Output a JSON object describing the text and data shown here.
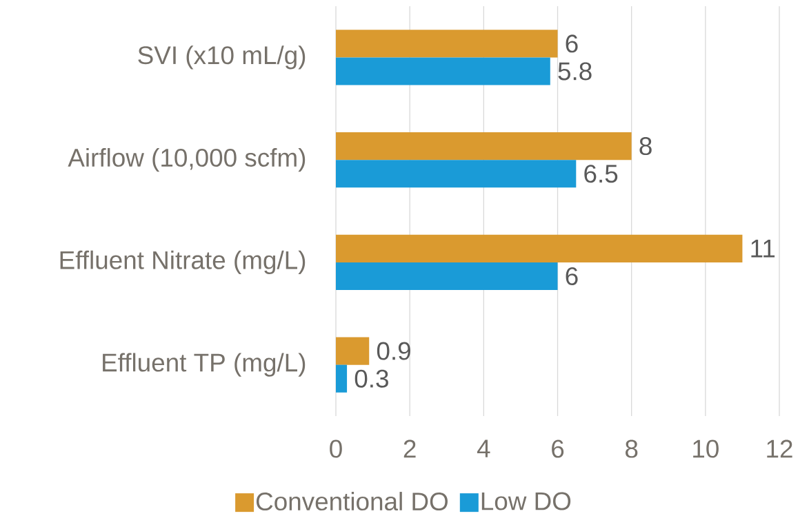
{
  "chart_data": {
    "type": "bar",
    "orientation": "horizontal",
    "categories": [
      "SVI (x10 mL/g)",
      "Airflow (10,000 scfm)",
      "Effluent Nitrate (mg/L)",
      "Effluent TP (mg/L)"
    ],
    "series": [
      {
        "name": "Conventional DO",
        "color": "#da9a2f",
        "values": [
          6,
          8,
          11,
          0.9
        ]
      },
      {
        "name": "Low DO",
        "color": "#1a9bd7",
        "values": [
          5.8,
          6.5,
          6,
          0.3
        ]
      }
    ],
    "xlim": [
      0,
      12
    ],
    "xticks": [
      0,
      2,
      4,
      6,
      8,
      10,
      12
    ],
    "grid": "x",
    "legend": "bottom",
    "data_labels": true
  }
}
